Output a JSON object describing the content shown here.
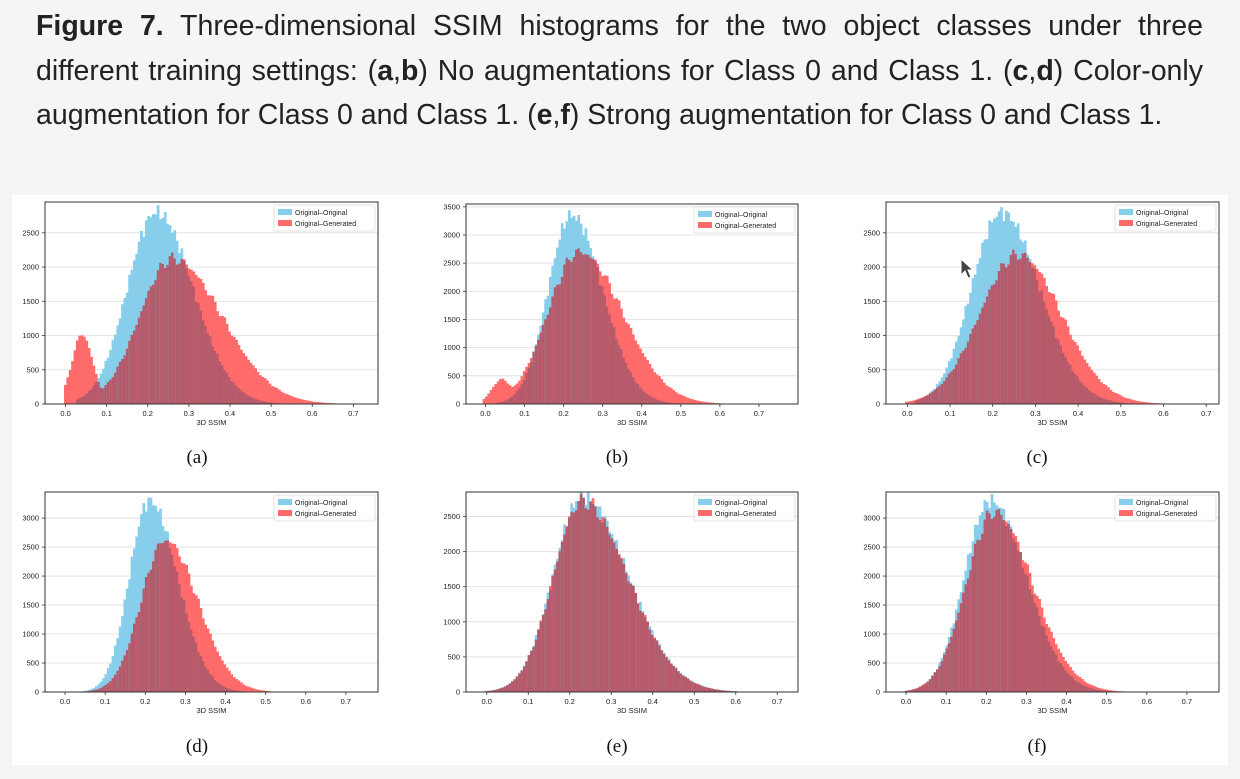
{
  "caption": {
    "label": "Figure 7.",
    "t1": " Three-dimensional SSIM histograms for the two object classes under three different training settings: (",
    "a": "a",
    "comma1": ",",
    "b": "b",
    "t2": ") No augmentations for Class 0 and Class 1. (",
    "c": "c",
    "comma2": ",",
    "d": "d",
    "t3": ") Color-only augmentation for Class 0 and Class 1. (",
    "e": "e",
    "comma3": ",",
    "f": "f",
    "t4": ") Strong augmentation for Class 0 and Class 1."
  },
  "colors": {
    "original_original": "#87ceeb",
    "original_generated": "#ff6b6b",
    "overlap": "#b55a6a"
  },
  "chart_data": [
    {
      "type": "histogram",
      "panel": "(a)",
      "xlabel": "3D SSIM",
      "xticks": [
        0.0,
        0.1,
        0.2,
        0.3,
        0.4,
        0.5,
        0.6,
        0.7
      ],
      "xlim": [
        -0.05,
        0.76
      ],
      "yticks": [
        0,
        500,
        1000,
        1500,
        2000,
        2500
      ],
      "ylim": [
        0,
        2950
      ],
      "legend_position": "top-right",
      "series": [
        {
          "name": "Original–Original",
          "peak_x": 0.22,
          "peak_y": 2800,
          "sd_left": 0.07,
          "sd_right": 0.09,
          "start_x": 0.03,
          "tail_end": 0.56
        },
        {
          "name": "Original–Generated",
          "peak_x": 0.26,
          "peak_y": 2120,
          "sd_left": 0.08,
          "sd_right": 0.12,
          "start_x": 0.0,
          "tail_end": 0.71,
          "shoulder": {
            "x": 0.04,
            "y": 1000
          }
        }
      ]
    },
    {
      "type": "histogram",
      "panel": "(b)",
      "xlabel": "3D SSIM",
      "xticks": [
        0.0,
        0.1,
        0.2,
        0.3,
        0.4,
        0.5,
        0.6,
        0.7
      ],
      "xlim": [
        -0.05,
        0.8
      ],
      "yticks": [
        0,
        500,
        1000,
        1500,
        2000,
        2500,
        3000,
        3500
      ],
      "ylim": [
        0,
        3550
      ],
      "legend_position": "top-right",
      "series": [
        {
          "name": "Original–Original",
          "peak_x": 0.22,
          "peak_y": 3350,
          "sd_left": 0.06,
          "sd_right": 0.08,
          "start_x": 0.03,
          "tail_end": 0.6
        },
        {
          "name": "Original–Generated",
          "peak_x": 0.24,
          "peak_y": 2700,
          "sd_left": 0.08,
          "sd_right": 0.11,
          "start_x": 0.0,
          "tail_end": 0.75,
          "shoulder": {
            "x": 0.04,
            "y": 400
          }
        }
      ]
    },
    {
      "type": "histogram",
      "panel": "(c)",
      "xlabel": "3D SSIM",
      "xticks": [
        0.0,
        0.1,
        0.2,
        0.3,
        0.4,
        0.5,
        0.6,
        0.7
      ],
      "xlim": [
        -0.05,
        0.73
      ],
      "yticks": [
        0,
        500,
        1000,
        1500,
        2000,
        2500
      ],
      "ylim": [
        0,
        2950
      ],
      "legend_position": "top-right",
      "series": [
        {
          "name": "Original–Original",
          "peak_x": 0.22,
          "peak_y": 2800,
          "sd_left": 0.07,
          "sd_right": 0.09,
          "start_x": 0.02,
          "tail_end": 0.6
        },
        {
          "name": "Original–Generated",
          "peak_x": 0.26,
          "peak_y": 2180,
          "sd_left": 0.09,
          "sd_right": 0.1,
          "start_x": 0.0,
          "tail_end": 0.7
        }
      ]
    },
    {
      "type": "histogram",
      "panel": "(d)",
      "xlabel": "3D SSIM",
      "xticks": [
        0.0,
        0.1,
        0.2,
        0.3,
        0.4,
        0.5,
        0.6,
        0.7
      ],
      "xlim": [
        -0.05,
        0.78
      ],
      "yticks": [
        0,
        500,
        1000,
        1500,
        2000,
        2500,
        3000
      ],
      "ylim": [
        0,
        3450
      ],
      "legend_position": "top-right",
      "series": [
        {
          "name": "Original–Original",
          "peak_x": 0.21,
          "peak_y": 3300,
          "sd_left": 0.05,
          "sd_right": 0.07,
          "start_x": 0.03,
          "tail_end": 0.5
        },
        {
          "name": "Original–Generated",
          "peak_x": 0.25,
          "peak_y": 2620,
          "sd_left": 0.06,
          "sd_right": 0.08,
          "start_x": 0.05,
          "tail_end": 0.6
        }
      ]
    },
    {
      "type": "histogram",
      "panel": "(e)",
      "xlabel": "3D SSIM",
      "xticks": [
        0.0,
        0.1,
        0.2,
        0.3,
        0.4,
        0.5,
        0.6,
        0.7
      ],
      "xlim": [
        -0.05,
        0.75
      ],
      "yticks": [
        0,
        500,
        1000,
        1500,
        2000,
        2500
      ],
      "ylim": [
        0,
        2850
      ],
      "legend_position": "top-right",
      "series": [
        {
          "name": "Original–Original",
          "peak_x": 0.23,
          "peak_y": 2780,
          "sd_left": 0.07,
          "sd_right": 0.11,
          "start_x": 0.0,
          "tail_end": 0.7
        },
        {
          "name": "Original–Generated",
          "peak_x": 0.23,
          "peak_y": 2720,
          "sd_left": 0.07,
          "sd_right": 0.11,
          "start_x": 0.0,
          "tail_end": 0.7
        }
      ]
    },
    {
      "type": "histogram",
      "panel": "(f)",
      "xlabel": "3D SSIM",
      "xticks": [
        0.0,
        0.1,
        0.2,
        0.3,
        0.4,
        0.5,
        0.6,
        0.7
      ],
      "xlim": [
        -0.05,
        0.78
      ],
      "yticks": [
        0,
        500,
        1000,
        1500,
        2000,
        2500,
        3000
      ],
      "ylim": [
        0,
        3450
      ],
      "legend_position": "top-right",
      "series": [
        {
          "name": "Original–Original",
          "peak_x": 0.21,
          "peak_y": 3300,
          "sd_left": 0.065,
          "sd_right": 0.09,
          "start_x": 0.0,
          "tail_end": 0.7
        },
        {
          "name": "Original–Generated",
          "peak_x": 0.22,
          "peak_y": 3100,
          "sd_left": 0.07,
          "sd_right": 0.095,
          "start_x": 0.0,
          "tail_end": 0.7
        }
      ]
    }
  ]
}
